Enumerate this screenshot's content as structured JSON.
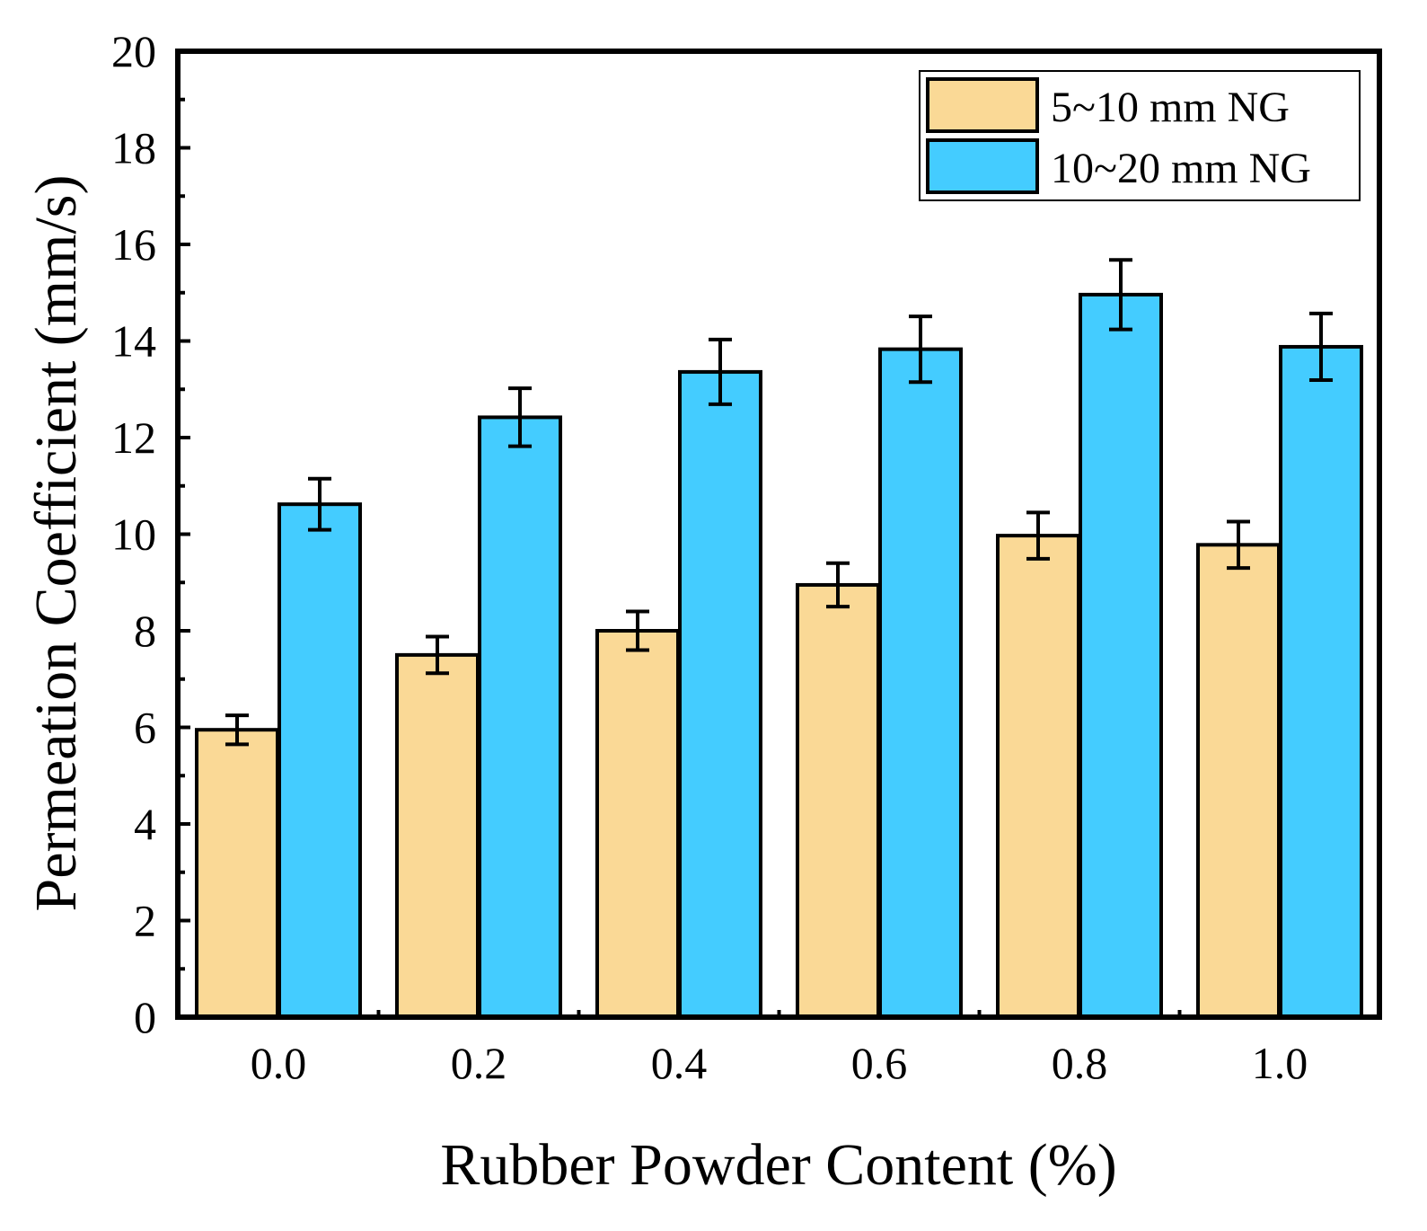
{
  "chart_data": {
    "type": "bar",
    "title": "",
    "xlabel": "Rubber Powder Content (%)",
    "ylabel": "Permeation Coefficient (mm/s)",
    "categories": [
      "0.0",
      "0.2",
      "0.4",
      "0.6",
      "0.8",
      "1.0"
    ],
    "ylim": [
      0,
      20
    ],
    "yticks": [
      "0",
      "2",
      "4",
      "6",
      "8",
      "10",
      "12",
      "14",
      "16",
      "18",
      "20"
    ],
    "grid": false,
    "legend_position": "top-right",
    "series": [
      {
        "name": "5~10 mm NG",
        "color": "#FAD996",
        "values": [
          5.95,
          7.5,
          8.0,
          8.95,
          9.97,
          9.78
        ],
        "errors": [
          0.3,
          0.38,
          0.4,
          0.45,
          0.48,
          0.48
        ]
      },
      {
        "name": "10~20 mm NG",
        "color": "#44CCFF",
        "values": [
          10.62,
          12.42,
          13.36,
          13.83,
          14.96,
          13.88
        ],
        "errors": [
          0.53,
          0.6,
          0.67,
          0.68,
          0.72,
          0.69
        ]
      }
    ]
  }
}
